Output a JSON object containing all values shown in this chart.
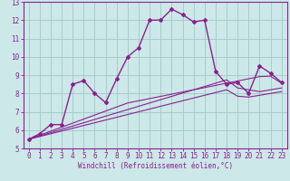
{
  "xlabel": "Windchill (Refroidissement éolien,°C)",
  "x_values": [
    0,
    1,
    2,
    3,
    4,
    5,
    6,
    7,
    8,
    9,
    10,
    11,
    12,
    13,
    14,
    15,
    16,
    17,
    18,
    19,
    20,
    21,
    22,
    23
  ],
  "main_y": [
    5.5,
    5.8,
    6.3,
    6.3,
    8.5,
    8.7,
    8.0,
    7.5,
    8.8,
    10.0,
    10.5,
    12.0,
    12.0,
    12.6,
    12.3,
    11.9,
    12.0,
    9.2,
    8.5,
    8.6,
    8.0,
    9.5,
    9.1,
    8.6
  ],
  "line1_y": [
    5.5,
    5.72,
    5.94,
    6.16,
    6.38,
    6.6,
    6.82,
    7.04,
    7.26,
    7.48,
    7.6,
    7.72,
    7.84,
    7.96,
    8.08,
    8.2,
    8.32,
    8.44,
    8.56,
    8.68,
    8.8,
    8.92,
    8.94,
    8.56
  ],
  "line2_y": [
    5.5,
    5.68,
    5.86,
    6.04,
    6.22,
    6.4,
    6.58,
    6.76,
    6.94,
    7.12,
    7.3,
    7.48,
    7.66,
    7.84,
    8.02,
    8.2,
    8.38,
    8.56,
    8.74,
    8.3,
    8.2,
    8.1,
    8.2,
    8.3
  ],
  "line3_y": [
    5.5,
    5.65,
    5.8,
    5.95,
    6.1,
    6.25,
    6.4,
    6.55,
    6.7,
    6.85,
    7.0,
    7.15,
    7.3,
    7.45,
    7.6,
    7.75,
    7.9,
    8.05,
    8.2,
    7.85,
    7.8,
    7.9,
    8.0,
    8.1
  ],
  "main_color": "#8b2090",
  "bg_color": "#cce8e8",
  "grid_color": "#a0c8c8",
  "ylim": [
    5,
    13
  ],
  "xlim_min": -0.5,
  "xlim_max": 23.5,
  "yticks": [
    5,
    6,
    7,
    8,
    9,
    10,
    11,
    12,
    13
  ],
  "xticks": [
    0,
    1,
    2,
    3,
    4,
    5,
    6,
    7,
    8,
    9,
    10,
    11,
    12,
    13,
    14,
    15,
    16,
    17,
    18,
    19,
    20,
    21,
    22,
    23
  ],
  "tick_fontsize": 5.5,
  "xlabel_fontsize": 5.5,
  "marker": "D",
  "markersize": 2.0,
  "linewidth_main": 1.0,
  "linewidth_ref": 0.8
}
